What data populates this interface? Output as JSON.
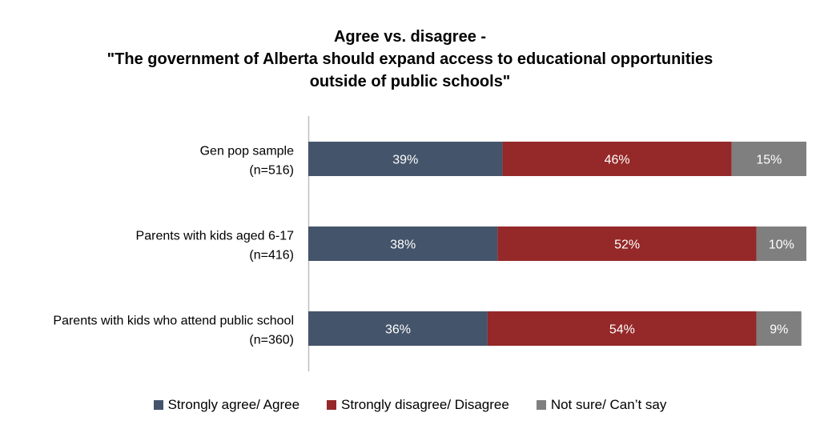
{
  "chart_data": {
    "type": "bar",
    "orientation": "horizontal",
    "stacked": true,
    "title_lines": [
      "Agree vs. disagree -",
      "\"The government of Alberta should expand access to educational opportunities",
      "outside of public schools\""
    ],
    "categories": [
      [
        "Gen pop sample",
        "(n=516)"
      ],
      [
        "Parents with kids aged 6-17",
        "(n=416)"
      ],
      [
        "Parents with kids who attend public school",
        "(n=360)"
      ]
    ],
    "series": [
      {
        "name": "Strongly agree/ Agree",
        "color": "#44546a",
        "values": [
          39,
          38,
          36
        ],
        "labels": [
          "39%",
          "38%",
          "36%"
        ]
      },
      {
        "name": "Strongly disagree/ Disagree",
        "color": "#952828",
        "values": [
          46,
          52,
          54
        ],
        "labels": [
          "46%",
          "52%",
          "54%"
        ]
      },
      {
        "name": "Not sure/ Can’t say",
        "color": "#7f7f7f",
        "values": [
          15,
          10,
          9
        ],
        "labels": [
          "15%",
          "10%",
          "9%"
        ]
      }
    ],
    "xlim": [
      0,
      100
    ],
    "unit": "%",
    "grid": false,
    "legend_position": "bottom"
  }
}
